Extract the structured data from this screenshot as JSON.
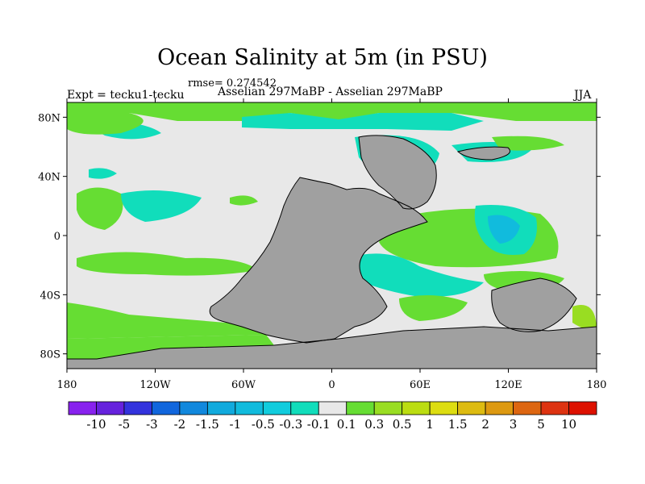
{
  "header": {
    "title": "Ocean Salinity at 5m (in PSU)",
    "rmse": "rmse= 0.274542",
    "expt": "Expt = tecku1-tecku",
    "subtitle": "Asselian 297MaBP - Asselian 297MaBP",
    "season": "JJA"
  },
  "map": {
    "lat_ticks": [
      {
        "label": "80N",
        "value": 80
      },
      {
        "label": "40N",
        "value": 40
      },
      {
        "label": "0",
        "value": 0
      },
      {
        "label": "40S",
        "value": -40
      },
      {
        "label": "80S",
        "value": -80
      }
    ],
    "lon_ticks": [
      {
        "label": "180",
        "value": -180
      },
      {
        "label": "120W",
        "value": -120
      },
      {
        "label": "60W",
        "value": -60
      },
      {
        "label": "0",
        "value": 0
      },
      {
        "label": "60E",
        "value": 60
      },
      {
        "label": "120E",
        "value": 120
      },
      {
        "label": "180",
        "value": 180
      }
    ],
    "colors": {
      "land": "#a0a0a0",
      "near_zero": "#e8e8e8",
      "pos_small": "#66dd33",
      "pos_med": "#99dd22",
      "neg_small": "#11ddbb",
      "neg_med": "#11bbdd"
    }
  },
  "colorbar": {
    "labels": [
      "-10",
      "-5",
      "-3",
      "-2",
      "-1.5",
      "-1",
      "-0.5",
      "-0.3",
      "-0.1",
      "0.1",
      "0.3",
      "0.5",
      "1",
      "1.5",
      "2",
      "3",
      "5",
      "10"
    ],
    "colors": [
      "#8822ee",
      "#6622dd",
      "#3333dd",
      "#1166dd",
      "#1188dd",
      "#11aadd",
      "#11bbdd",
      "#11ccdd",
      "#11ddbb",
      "#e8e8e8",
      "#66dd33",
      "#99dd22",
      "#bbdd11",
      "#dddd11",
      "#ddbb11",
      "#dd9911",
      "#dd6611",
      "#dd3311",
      "#dd1100"
    ]
  }
}
